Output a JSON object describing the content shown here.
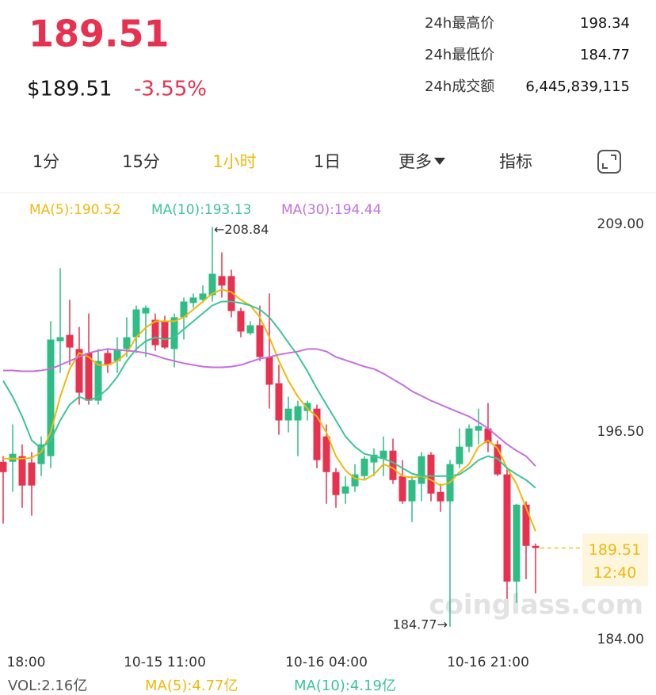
{
  "header": {
    "price": "189.51",
    "price_usd": "$189.51",
    "change": "-3.55%",
    "stats": [
      {
        "label": "24h最高价",
        "value": "198.34"
      },
      {
        "label": "24h最低价",
        "value": "184.77"
      },
      {
        "label": "24h成交额",
        "value": "6,445,839,115"
      }
    ]
  },
  "tabs": [
    "1分",
    "15分",
    "1小时",
    "1日",
    "更多",
    "指标"
  ],
  "chart_data": {
    "type": "candlestick",
    "categories": [
      "18:00",
      null,
      null,
      null,
      null,
      null,
      null,
      null,
      null,
      null,
      null,
      null,
      null,
      null,
      null,
      null,
      null,
      "10-15 11:00",
      null,
      null,
      null,
      null,
      null,
      null,
      null,
      null,
      null,
      null,
      null,
      null,
      null,
      null,
      null,
      null,
      "10-16 04:00",
      null,
      null,
      null,
      null,
      null,
      null,
      null,
      null,
      null,
      null,
      null,
      null,
      null,
      null,
      null,
      null,
      "10-16 21:00",
      null,
      null,
      null,
      null,
      null
    ],
    "open": [
      194.7,
      194.7,
      195.04,
      194.66,
      194.56,
      195.04,
      201.96,
      202.34,
      201.49,
      201.25,
      198.38,
      201.25,
      200.77,
      201.49,
      202.2,
      203.63,
      203.25,
      203.16,
      201.49,
      203.4,
      204.26,
      204.45,
      204.73,
      205.88,
      205.88,
      203.78,
      202.44,
      202.92,
      201.01,
      199.43,
      197.19,
      197.19,
      197.76,
      197.9,
      196.23,
      194.08,
      192.79,
      193.22,
      193.84,
      194.66,
      194.89,
      195.37,
      193.84,
      192.32,
      193.37,
      195.13,
      192.89,
      192.32,
      194.56,
      195.61,
      196.57,
      196.71,
      195.75,
      193.94,
      187.49,
      192.12,
      189.64
    ],
    "high": [
      195.04,
      196.95,
      195.75,
      195.28,
      196.23,
      203.16,
      206.36,
      204.45,
      202.82,
      203.63,
      201.49,
      201.49,
      202.2,
      203.4,
      204.11,
      204.11,
      203.63,
      203.49,
      203.63,
      204.59,
      204.83,
      205.31,
      208.84,
      207.31,
      206.26,
      203.97,
      203.16,
      204.11,
      204.83,
      200.53,
      198.62,
      198.38,
      198.38,
      198.14,
      196.95,
      194.32,
      193.84,
      194.56,
      195.04,
      195.51,
      196.23,
      196.09,
      194.8,
      193.84,
      195.28,
      195.28,
      193.37,
      194.8,
      196.71,
      196.95,
      197.9,
      198.24,
      195.99,
      194.32,
      192.17,
      192.32,
      189.78
    ],
    "low": [
      190.98,
      192.89,
      191.93,
      191.46,
      193.84,
      194.32,
      200.05,
      200.53,
      198.14,
      198.14,
      198.14,
      200.05,
      200.05,
      201.01,
      201.25,
      201.01,
      201.39,
      201.49,
      200.39,
      202.06,
      203.97,
      204.26,
      204.35,
      204.59,
      203.4,
      202.2,
      202.34,
      200.77,
      197.9,
      196.33,
      196.47,
      195.04,
      197.19,
      194.32,
      192.17,
      191.93,
      192.17,
      192.89,
      193.6,
      193.84,
      193.84,
      193.37,
      192.17,
      191.07,
      192.32,
      192.32,
      191.69,
      184.77,
      194.32,
      195.28,
      195.75,
      195.28,
      193.84,
      186.44,
      186.2,
      187.63,
      186.78
    ],
    "close": [
      194.08,
      195.18,
      193.27,
      193.27,
      195.75,
      202.06,
      202.2,
      201.58,
      198.86,
      198.38,
      200.77,
      200.53,
      201.49,
      202.2,
      203.87,
      203.97,
      201.72,
      201.58,
      203.4,
      204.35,
      204.59,
      204.83,
      206.02,
      205.31,
      203.78,
      202.54,
      202.92,
      201.01,
      199.34,
      197.19,
      197.9,
      198.05,
      198.24,
      194.8,
      194.08,
      192.7,
      193.22,
      193.94,
      194.89,
      195.13,
      195.37,
      193.6,
      192.32,
      193.6,
      195.04,
      192.79,
      192.32,
      194.56,
      195.61,
      196.71,
      196.85,
      195.85,
      193.94,
      187.49,
      192.12,
      189.64,
      189.51
    ],
    "up_color": "#2ebd85",
    "down_color": "#e8304f",
    "ylim": [
      184,
      209
    ],
    "yticks": [
      {
        "value": 209,
        "label": "209.00"
      },
      {
        "value": 196.5,
        "label": "196.50"
      },
      {
        "value": 184,
        "label": "184.00"
      }
    ],
    "series": [
      {
        "name": "MA(5):190.52",
        "color": "#f0b90b",
        "values": [
          194.89,
          194.89,
          194.89,
          194.94,
          195.28,
          196.47,
          198.62,
          200.29,
          201.25,
          201.01,
          200.53,
          200.53,
          200.77,
          201.25,
          202.2,
          202.78,
          203.16,
          203.16,
          203.16,
          203.4,
          203.87,
          204.35,
          204.83,
          205.07,
          204.92,
          204.45,
          204.11,
          203.4,
          202.2,
          200.77,
          199.58,
          198.62,
          197.9,
          197.43,
          196.47,
          195.04,
          194.18,
          193.7,
          193.61,
          193.94,
          194.56,
          194.32,
          193.84,
          193.75,
          193.84,
          193.61,
          193.27,
          193.46,
          194.08,
          194.56,
          195.61,
          195.99,
          195.52,
          194.32,
          193.37,
          191.93,
          190.52
        ]
      },
      {
        "name": "MA(10):193.13",
        "color": "#3cc49a",
        "values": [
          199.58,
          198.62,
          197.43,
          195.99,
          195.52,
          195.99,
          197.19,
          198.14,
          198.62,
          198.38,
          198.62,
          199.1,
          199.81,
          200.77,
          201.49,
          201.96,
          202.2,
          202.06,
          202.2,
          202.68,
          203.16,
          203.64,
          204.11,
          204.35,
          204.35,
          204.26,
          204.11,
          203.87,
          203.4,
          202.68,
          201.87,
          201.1,
          200.15,
          199.1,
          198.14,
          197.19,
          196.23,
          195.61,
          195.18,
          195.04,
          194.89,
          194.66,
          194.32,
          193.99,
          193.84,
          193.84,
          193.84,
          193.84,
          193.94,
          194.32,
          194.8,
          195.04,
          194.89,
          194.32,
          193.94,
          193.61,
          193.13
        ]
      },
      {
        "name": "MA(30):194.44",
        "color": "#c66fe0",
        "values": [
          200.2,
          200.2,
          200.15,
          200.15,
          200.2,
          200.29,
          200.53,
          200.77,
          201.01,
          201.25,
          201.39,
          201.49,
          201.44,
          201.39,
          201.34,
          201.25,
          201.1,
          200.91,
          200.77,
          200.63,
          200.53,
          200.43,
          200.39,
          200.39,
          200.43,
          200.53,
          200.72,
          200.91,
          201.01,
          201.15,
          201.25,
          201.34,
          201.49,
          201.49,
          201.34,
          201.01,
          200.82,
          200.63,
          200.43,
          200.29,
          200.01,
          199.67,
          199.34,
          198.95,
          198.67,
          198.38,
          198.14,
          197.9,
          197.66,
          197.43,
          197.09,
          196.71,
          196.23,
          195.75,
          195.37,
          195.04,
          194.44
        ]
      }
    ],
    "annotations": {
      "high": "←208.84",
      "low": "184.77→",
      "last_price": "189.51",
      "countdown": "12:40"
    },
    "watermark": "coinglass.com"
  },
  "volume": {
    "vol": "VOL:2.16亿",
    "ma5": "MA(5):4.77亿",
    "ma10": "MA(10):4.19亿"
  }
}
